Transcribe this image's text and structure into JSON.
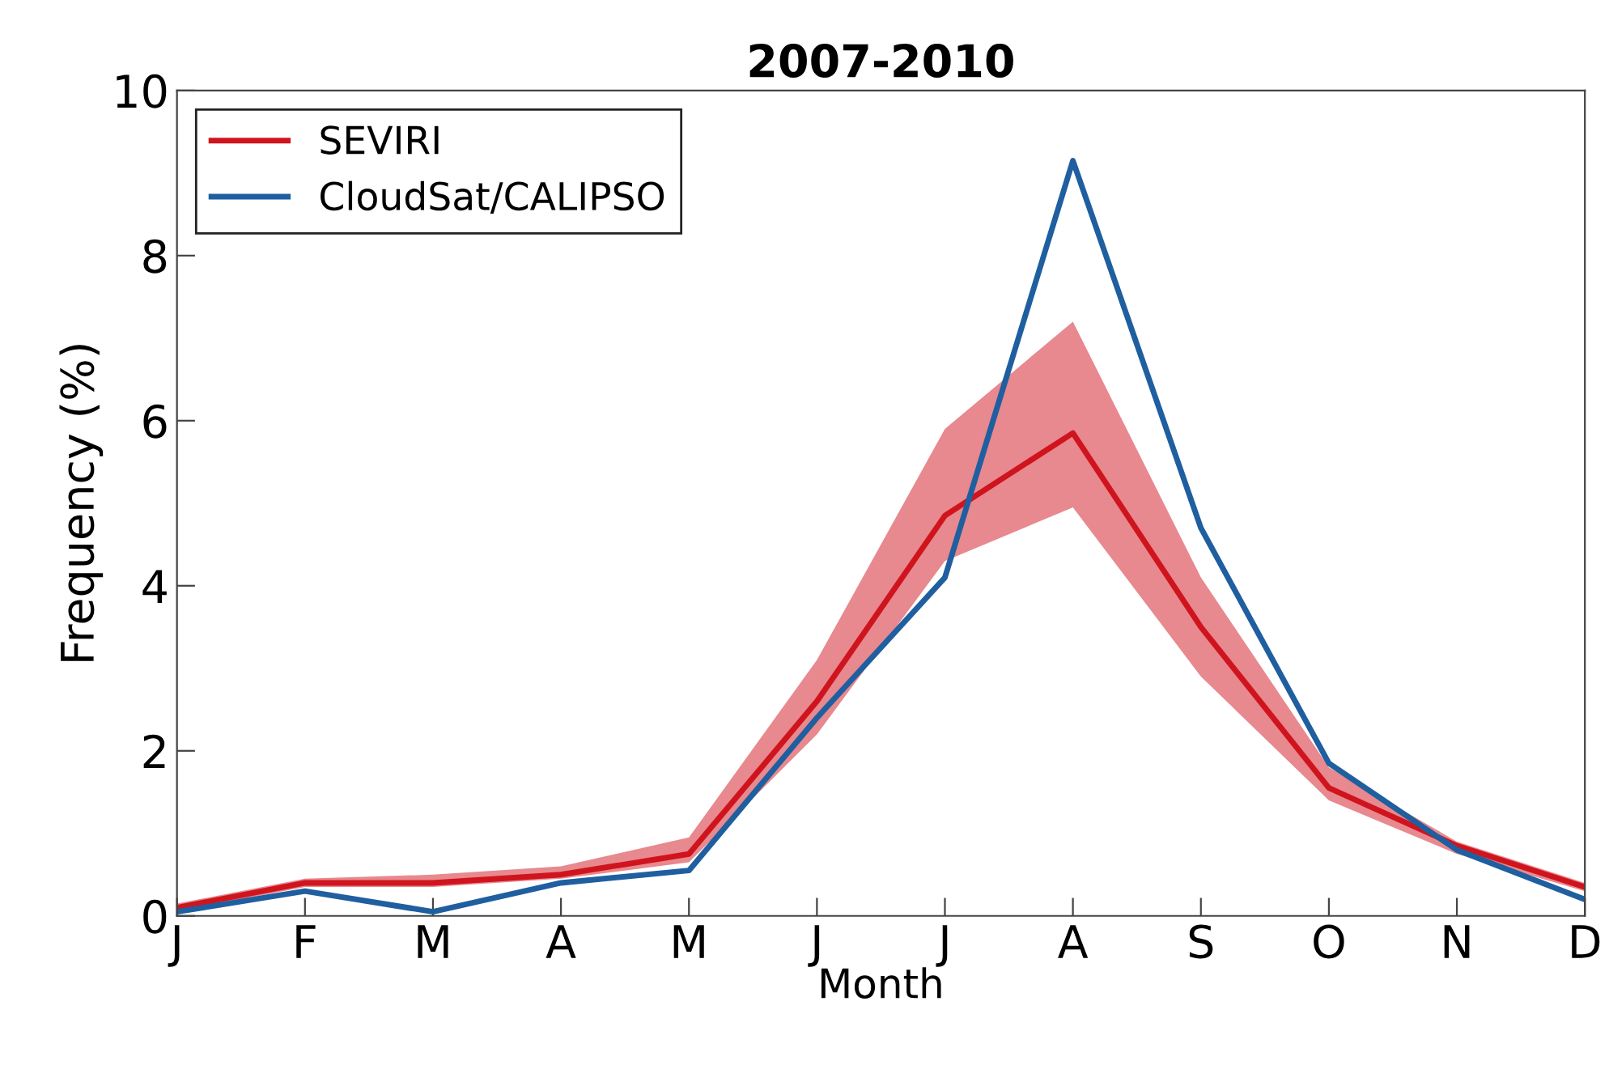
{
  "chart_data": {
    "type": "line",
    "title": "2007-2010",
    "xlabel": "Month",
    "ylabel": "Frequency (%)",
    "categories": [
      "J",
      "F",
      "M",
      "A",
      "M",
      "J",
      "J",
      "A",
      "S",
      "O",
      "N",
      "D"
    ],
    "series": [
      {
        "name": "SEVIRI",
        "color": "#d0141e",
        "values": [
          0.1,
          0.4,
          0.4,
          0.5,
          0.75,
          2.6,
          4.85,
          5.85,
          3.5,
          1.55,
          0.85,
          0.35
        ],
        "lower": [
          0.05,
          0.35,
          0.35,
          0.45,
          0.65,
          2.2,
          4.3,
          4.95,
          2.9,
          1.4,
          0.75,
          0.3
        ],
        "upper": [
          0.15,
          0.45,
          0.5,
          0.6,
          0.95,
          3.1,
          5.9,
          7.2,
          4.1,
          1.8,
          0.9,
          0.4
        ]
      },
      {
        "name": "CloudSat/CALIPSO",
        "color": "#1f5fa0",
        "values": [
          0.05,
          0.3,
          0.05,
          0.4,
          0.55,
          2.4,
          4.1,
          9.15,
          4.7,
          1.85,
          0.8,
          0.2
        ]
      }
    ],
    "ylim": [
      0,
      10
    ],
    "yticks": [
      0,
      2,
      4,
      6,
      8,
      10
    ],
    "legend": "top left",
    "grid": false,
    "line_style": "solid",
    "marker": "none"
  }
}
